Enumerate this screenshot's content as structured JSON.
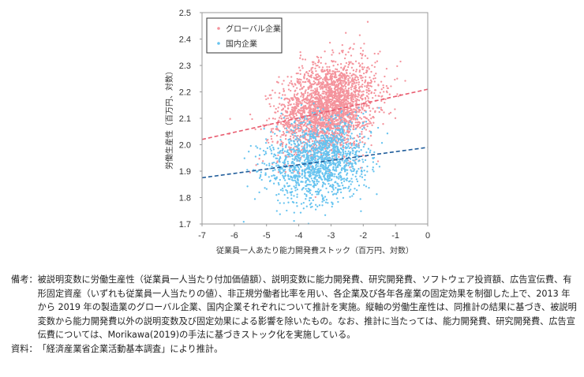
{
  "chart_data": {
    "type": "scatter",
    "xlabel": "従業員一人あたり能力開発費ストック（百万円、対数）",
    "ylabel": "労働生産性（百万円、対数）",
    "xlim": [
      -7,
      0
    ],
    "ylim": [
      1.7,
      2.5
    ],
    "x_ticks": [
      "-7",
      "-6",
      "-5",
      "-4",
      "-3",
      "-2",
      "-1",
      "0"
    ],
    "y_ticks": [
      "1.7",
      "1.8",
      "1.9",
      "2.0",
      "2.1",
      "2.2",
      "2.3",
      "2.4",
      "2.5"
    ],
    "legend_position": "top-left",
    "grid": false,
    "colors": {
      "global": "#f4939c",
      "domestic": "#66c3ef",
      "global_line": "#e85a6e",
      "domestic_line": "#1f5c9a"
    },
    "series": [
      {
        "name": "グローバル企業",
        "cloud": {
          "n": 2600,
          "x_center": -3.1,
          "x_sd": 0.75,
          "y_center": 2.14,
          "y_sd": 0.085,
          "x_range": [
            -6.7,
            -0.6
          ],
          "y_range": [
            1.78,
            2.5
          ]
        },
        "trend": {
          "x": [
            -7,
            0
          ],
          "y": [
            2.02,
            2.21
          ]
        }
      },
      {
        "name": "国内企業",
        "cloud": {
          "n": 1500,
          "x_center": -3.4,
          "x_sd": 0.75,
          "y_center": 1.94,
          "y_sd": 0.075,
          "x_range": [
            -6.5,
            -0.6
          ],
          "y_range": [
            1.7,
            2.22
          ]
        },
        "trend": {
          "x": [
            -7,
            0
          ],
          "y": [
            1.875,
            1.99
          ]
        }
      }
    ]
  },
  "notes": {
    "label1": "備考：",
    "text1": "被説明変数に労働生産性（従業員一人当たり付加価値額）、説明変数に能力開発費、研究開発費、ソフトウェア投資額、広告宣伝費、有形固定資産（いずれも従業員一人当たりの値）、非正規労働者比率を用い、各企業及び各年各産業の固定効果を制御した上で、2013 年から 2019 年の製造業のグローバル企業、国内企業それぞれについて推計を実施。縦軸の労働生産性は、同推計の結果に基づき、被説明変数から能力開発費以外の説明変数及び固定効果による影響を除いたもの。なお、推計に当たっては、能力開発費、研究開発費、広告宣伝費については、Morikawa(2019)の手法に基づきストック化を実施している。",
    "label2": "資料：",
    "text2": "「経済産業省企業活動基本調査」により推計。"
  }
}
